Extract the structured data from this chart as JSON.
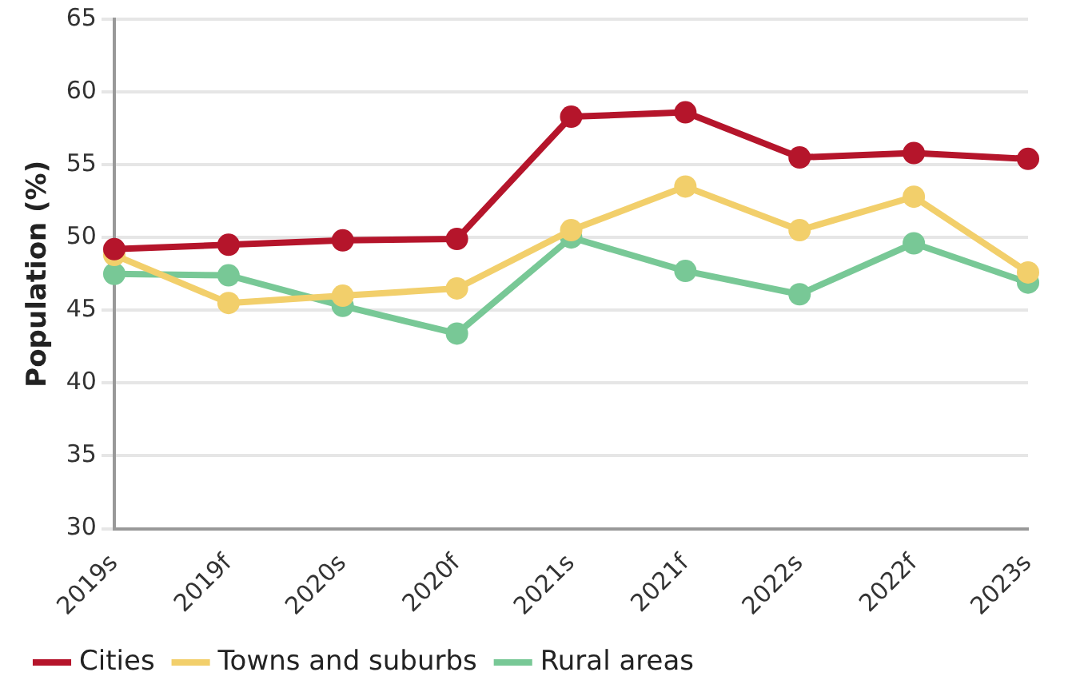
{
  "chart_data": {
    "type": "line",
    "ylabel": "Population (%)",
    "categories": [
      "2019s",
      "2019f",
      "2020s",
      "2020f",
      "2021s",
      "2021f",
      "2022s",
      "2022f",
      "2023s"
    ],
    "series": [
      {
        "name": "Cities",
        "color": "#b5152b",
        "values": [
          49.2,
          49.5,
          49.8,
          49.9,
          58.3,
          58.6,
          55.5,
          55.8,
          55.4
        ]
      },
      {
        "name": "Towns and suburbs",
        "color": "#f2cf6b",
        "values": [
          48.8,
          45.5,
          46,
          46.5,
          50.5,
          53.5,
          50.5,
          52.8,
          47.6
        ]
      },
      {
        "name": "Rural areas",
        "color": "#78c896",
        "values": [
          47.5,
          47.4,
          45.3,
          43.4,
          50,
          47.7,
          46.1,
          49.6,
          46.9
        ]
      }
    ],
    "ylim": [
      30,
      65
    ],
    "yticks": [
      30,
      35,
      40,
      45,
      50,
      55,
      60,
      65
    ],
    "grid": "y",
    "legend": "bottom",
    "marker": "circle",
    "line_style": "solid"
  }
}
